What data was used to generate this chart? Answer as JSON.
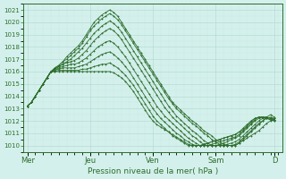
{
  "xlabel": "Pression niveau de la mer( hPa )",
  "ylim": [
    1009.5,
    1021.5
  ],
  "yticks": [
    1010,
    1011,
    1012,
    1013,
    1014,
    1015,
    1016,
    1017,
    1018,
    1019,
    1020,
    1021
  ],
  "bg_color": "#d4f0ec",
  "grid_major_color": "#b0d8cc",
  "grid_minor_color": "#c8eae0",
  "line_color": "#2d6e2d",
  "days": [
    "Mer",
    "Jeu",
    "Ven",
    "Sam",
    "D"
  ],
  "day_positions": [
    0,
    16,
    32,
    48,
    63
  ],
  "xlim": [
    -1,
    65
  ],
  "series": [
    {
      "x": [
        0,
        1,
        2,
        3,
        4,
        5,
        6,
        7,
        8,
        9,
        10,
        11,
        12,
        13,
        14,
        15,
        16,
        17,
        18,
        19,
        20,
        21,
        22,
        23,
        24,
        25,
        26,
        27,
        28,
        29,
        30,
        31,
        32,
        33,
        34,
        35,
        36,
        37,
        38,
        39,
        40,
        41,
        42,
        43,
        44,
        45,
        46,
        47,
        48,
        49,
        50,
        51,
        52,
        53,
        54,
        55,
        56,
        57,
        58,
        59,
        60,
        61,
        62,
        63
      ],
      "y": [
        1013.2,
        1013.5,
        1014.0,
        1014.5,
        1015.0,
        1015.5,
        1016.0,
        1016.3,
        1016.5,
        1016.8,
        1017.2,
        1017.5,
        1017.8,
        1018.1,
        1018.5,
        1019.0,
        1019.5,
        1020.0,
        1020.3,
        1020.6,
        1020.8,
        1021.0,
        1020.8,
        1020.5,
        1020.0,
        1019.5,
        1019.0,
        1018.5,
        1018.0,
        1017.5,
        1017.0,
        1016.5,
        1016.0,
        1015.5,
        1015.0,
        1014.5,
        1014.0,
        1013.5,
        1013.2,
        1012.9,
        1012.6,
        1012.3,
        1012.0,
        1011.8,
        1011.5,
        1011.2,
        1011.0,
        1010.8,
        1010.5,
        1010.3,
        1010.1,
        1010.0,
        1010.0,
        1010.0,
        1010.2,
        1010.4,
        1010.6,
        1010.8,
        1011.0,
        1011.2,
        1011.5,
        1011.8,
        1012.0,
        1012.2
      ]
    },
    {
      "x": [
        0,
        1,
        2,
        3,
        4,
        5,
        6,
        7,
        8,
        9,
        10,
        11,
        12,
        13,
        14,
        15,
        16,
        17,
        18,
        19,
        20,
        21,
        22,
        23,
        24,
        25,
        26,
        27,
        28,
        29,
        30,
        31,
        32,
        33,
        34,
        35,
        36,
        37,
        38,
        39,
        40,
        41,
        42,
        43,
        44,
        45,
        46,
        47,
        48,
        49,
        50,
        51,
        52,
        53,
        54,
        55,
        56,
        57,
        58,
        59,
        60,
        61,
        62,
        63
      ],
      "y": [
        1013.2,
        1013.5,
        1014.0,
        1014.5,
        1015.0,
        1015.5,
        1016.0,
        1016.3,
        1016.5,
        1016.8,
        1017.0,
        1017.3,
        1017.6,
        1017.9,
        1018.3,
        1018.8,
        1019.3,
        1019.7,
        1020.0,
        1020.3,
        1020.5,
        1020.7,
        1020.5,
        1020.2,
        1019.8,
        1019.3,
        1018.8,
        1018.3,
        1017.8,
        1017.3,
        1016.8,
        1016.3,
        1015.8,
        1015.3,
        1014.8,
        1014.3,
        1013.8,
        1013.4,
        1013.0,
        1012.7,
        1012.4,
        1012.1,
        1011.8,
        1011.6,
        1011.3,
        1011.0,
        1010.8,
        1010.5,
        1010.3,
        1010.1,
        1010.0,
        1010.0,
        1010.0,
        1010.0,
        1010.2,
        1010.5,
        1010.8,
        1011.1,
        1011.4,
        1011.7,
        1012.0,
        1012.3,
        1012.5,
        1012.3
      ]
    },
    {
      "x": [
        0,
        1,
        2,
        3,
        4,
        5,
        6,
        7,
        8,
        9,
        10,
        11,
        12,
        13,
        14,
        15,
        16,
        17,
        18,
        19,
        20,
        21,
        22,
        23,
        24,
        25,
        26,
        27,
        28,
        29,
        30,
        31,
        32,
        33,
        34,
        35,
        36,
        37,
        38,
        39,
        40,
        41,
        42,
        43,
        44,
        45,
        46,
        47,
        48,
        49,
        50,
        51,
        52,
        53,
        54,
        55,
        56,
        57,
        58,
        59,
        60,
        61,
        62,
        63
      ],
      "y": [
        1013.2,
        1013.5,
        1014.0,
        1014.5,
        1015.0,
        1015.5,
        1016.0,
        1016.2,
        1016.4,
        1016.6,
        1016.8,
        1017.0,
        1017.3,
        1017.6,
        1017.9,
        1018.3,
        1018.7,
        1019.1,
        1019.4,
        1019.7,
        1019.9,
        1020.1,
        1019.9,
        1019.6,
        1019.2,
        1018.7,
        1018.2,
        1017.7,
        1017.2,
        1016.7,
        1016.2,
        1015.7,
        1015.2,
        1014.7,
        1014.2,
        1013.7,
        1013.2,
        1012.8,
        1012.4,
        1012.1,
        1011.8,
        1011.5,
        1011.2,
        1011.0,
        1010.7,
        1010.4,
        1010.2,
        1010.0,
        1010.0,
        1010.0,
        1010.0,
        1010.0,
        1010.0,
        1010.1,
        1010.3,
        1010.6,
        1010.9,
        1011.2,
        1011.5,
        1011.8,
        1012.0,
        1012.2,
        1012.3,
        1012.2
      ]
    },
    {
      "x": [
        0,
        1,
        2,
        3,
        4,
        5,
        6,
        7,
        8,
        9,
        10,
        11,
        12,
        13,
        14,
        15,
        16,
        17,
        18,
        19,
        20,
        21,
        22,
        23,
        24,
        25,
        26,
        27,
        28,
        29,
        30,
        31,
        32,
        33,
        34,
        35,
        36,
        37,
        38,
        39,
        40,
        41,
        42,
        43,
        44,
        45,
        46,
        47,
        48,
        49,
        50,
        51,
        52,
        53,
        54,
        55,
        56,
        57,
        58,
        59,
        60,
        61,
        62,
        63
      ],
      "y": [
        1013.2,
        1013.5,
        1014.0,
        1014.5,
        1015.0,
        1015.5,
        1016.0,
        1016.2,
        1016.4,
        1016.6,
        1016.7,
        1016.8,
        1016.9,
        1017.1,
        1017.4,
        1017.7,
        1018.1,
        1018.5,
        1018.8,
        1019.1,
        1019.3,
        1019.5,
        1019.3,
        1019.0,
        1018.6,
        1018.1,
        1017.6,
        1017.1,
        1016.6,
        1016.1,
        1015.6,
        1015.1,
        1014.6,
        1014.1,
        1013.6,
        1013.1,
        1012.7,
        1012.3,
        1012.0,
        1011.7,
        1011.4,
        1011.1,
        1010.8,
        1010.6,
        1010.3,
        1010.1,
        1010.0,
        1010.0,
        1010.0,
        1010.0,
        1010.0,
        1010.1,
        1010.2,
        1010.3,
        1010.5,
        1010.8,
        1011.1,
        1011.4,
        1011.7,
        1012.0,
        1012.2,
        1012.3,
        1012.2,
        1012.1
      ]
    },
    {
      "x": [
        0,
        1,
        2,
        3,
        4,
        5,
        6,
        7,
        8,
        9,
        10,
        11,
        12,
        13,
        14,
        15,
        16,
        17,
        18,
        19,
        20,
        21,
        22,
        23,
        24,
        25,
        26,
        27,
        28,
        29,
        30,
        31,
        32,
        33,
        34,
        35,
        36,
        37,
        38,
        39,
        40,
        41,
        42,
        43,
        44,
        45,
        46,
        47,
        48,
        49,
        50,
        51,
        52,
        53,
        54,
        55,
        56,
        57,
        58,
        59,
        60,
        61,
        62,
        63
      ],
      "y": [
        1013.2,
        1013.5,
        1014.0,
        1014.5,
        1015.0,
        1015.5,
        1016.0,
        1016.1,
        1016.3,
        1016.4,
        1016.5,
        1016.6,
        1016.6,
        1016.7,
        1016.9,
        1017.1,
        1017.4,
        1017.7,
        1018.0,
        1018.2,
        1018.4,
        1018.5,
        1018.3,
        1018.0,
        1017.6,
        1017.2,
        1016.7,
        1016.2,
        1015.7,
        1015.2,
        1014.7,
        1014.2,
        1013.7,
        1013.2,
        1012.8,
        1012.4,
        1012.1,
        1011.8,
        1011.5,
        1011.2,
        1010.9,
        1010.6,
        1010.4,
        1010.2,
        1010.0,
        1010.0,
        1010.0,
        1010.0,
        1010.0,
        1010.1,
        1010.2,
        1010.3,
        1010.5,
        1010.6,
        1010.8,
        1011.1,
        1011.4,
        1011.7,
        1012.0,
        1012.2,
        1012.3,
        1012.3,
        1012.2,
        1012.1
      ]
    },
    {
      "x": [
        0,
        1,
        2,
        3,
        4,
        5,
        6,
        7,
        8,
        9,
        10,
        11,
        12,
        13,
        14,
        15,
        16,
        17,
        18,
        19,
        20,
        21,
        22,
        23,
        24,
        25,
        26,
        27,
        28,
        29,
        30,
        31,
        32,
        33,
        34,
        35,
        36,
        37,
        38,
        39,
        40,
        41,
        42,
        43,
        44,
        45,
        46,
        47,
        48,
        49,
        50,
        51,
        52,
        53,
        54,
        55,
        56,
        57,
        58,
        59,
        60,
        61,
        62,
        63
      ],
      "y": [
        1013.2,
        1013.5,
        1014.0,
        1014.5,
        1015.0,
        1015.5,
        1016.0,
        1016.1,
        1016.2,
        1016.3,
        1016.3,
        1016.3,
        1016.3,
        1016.4,
        1016.5,
        1016.6,
        1016.8,
        1017.0,
        1017.2,
        1017.4,
        1017.5,
        1017.6,
        1017.4,
        1017.1,
        1016.8,
        1016.4,
        1016.0,
        1015.5,
        1015.0,
        1014.5,
        1014.0,
        1013.5,
        1013.0,
        1012.6,
        1012.2,
        1011.9,
        1011.6,
        1011.3,
        1011.0,
        1010.8,
        1010.5,
        1010.3,
        1010.1,
        1010.0,
        1010.0,
        1010.0,
        1010.0,
        1010.1,
        1010.2,
        1010.3,
        1010.4,
        1010.5,
        1010.6,
        1010.7,
        1010.9,
        1011.2,
        1011.5,
        1011.8,
        1012.1,
        1012.3,
        1012.3,
        1012.3,
        1012.2,
        1012.1
      ]
    },
    {
      "x": [
        0,
        1,
        2,
        3,
        4,
        5,
        6,
        7,
        8,
        9,
        10,
        11,
        12,
        13,
        14,
        15,
        16,
        17,
        18,
        19,
        20,
        21,
        22,
        23,
        24,
        25,
        26,
        27,
        28,
        29,
        30,
        31,
        32,
        33,
        34,
        35,
        36,
        37,
        38,
        39,
        40,
        41,
        42,
        43,
        44,
        45,
        46,
        47,
        48,
        49,
        50,
        51,
        52,
        53,
        54,
        55,
        56,
        57,
        58,
        59,
        60,
        61,
        62,
        63
      ],
      "y": [
        1013.2,
        1013.5,
        1014.0,
        1014.5,
        1015.0,
        1015.5,
        1016.0,
        1016.0,
        1016.1,
        1016.1,
        1016.1,
        1016.1,
        1016.1,
        1016.1,
        1016.2,
        1016.2,
        1016.3,
        1016.4,
        1016.5,
        1016.6,
        1016.6,
        1016.7,
        1016.5,
        1016.3,
        1016.0,
        1015.7,
        1015.3,
        1014.9,
        1014.4,
        1013.9,
        1013.4,
        1012.9,
        1012.4,
        1012.0,
        1011.7,
        1011.4,
        1011.1,
        1010.8,
        1010.6,
        1010.4,
        1010.2,
        1010.0,
        1010.0,
        1010.0,
        1010.0,
        1010.1,
        1010.2,
        1010.3,
        1010.4,
        1010.5,
        1010.6,
        1010.7,
        1010.8,
        1010.9,
        1011.1,
        1011.4,
        1011.7,
        1012.0,
        1012.2,
        1012.3,
        1012.3,
        1012.2,
        1012.1,
        1012.0
      ]
    },
    {
      "x": [
        0,
        1,
        2,
        3,
        4,
        5,
        6,
        7,
        8,
        9,
        10,
        11,
        12,
        13,
        14,
        15,
        16,
        17,
        18,
        19,
        20,
        21,
        22,
        23,
        24,
        25,
        26,
        27,
        28,
        29,
        30,
        31,
        32,
        33,
        34,
        35,
        36,
        37,
        38,
        39,
        40,
        41,
        42,
        43,
        44,
        45,
        46,
        47,
        48,
        49,
        50,
        51,
        52,
        53,
        54,
        55,
        56,
        57,
        58,
        59,
        60,
        61,
        62,
        63
      ],
      "y": [
        1013.2,
        1013.5,
        1014.0,
        1014.5,
        1015.0,
        1015.5,
        1016.0,
        1016.0,
        1016.0,
        1016.0,
        1016.0,
        1016.0,
        1016.0,
        1016.0,
        1016.0,
        1016.0,
        1016.0,
        1016.0,
        1016.0,
        1016.0,
        1016.0,
        1016.0,
        1015.9,
        1015.7,
        1015.5,
        1015.2,
        1014.8,
        1014.4,
        1013.9,
        1013.4,
        1012.9,
        1012.4,
        1012.0,
        1011.7,
        1011.5,
        1011.3,
        1011.1,
        1010.9,
        1010.7,
        1010.5,
        1010.3,
        1010.1,
        1010.0,
        1010.0,
        1010.0,
        1010.1,
        1010.2,
        1010.3,
        1010.4,
        1010.5,
        1010.6,
        1010.7,
        1010.8,
        1010.9,
        1011.1,
        1011.3,
        1011.6,
        1011.9,
        1012.2,
        1012.3,
        1012.3,
        1012.2,
        1012.1,
        1012.0
      ]
    }
  ]
}
